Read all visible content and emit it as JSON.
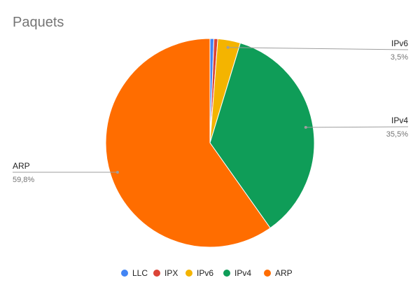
{
  "chart_data": {
    "type": "pie",
    "title": "Paquets",
    "slices": [
      {
        "label": "LLC",
        "value": 0.6,
        "pct_label": "",
        "color": "#4285F4"
      },
      {
        "label": "IPX",
        "value": 0.6,
        "pct_label": "",
        "color": "#DB4437"
      },
      {
        "label": "IPv6",
        "value": 3.5,
        "pct_label": "3,5%",
        "color": "#F4B400"
      },
      {
        "label": "IPv4",
        "value": 35.5,
        "pct_label": "35,5%",
        "color": "#0F9D58"
      },
      {
        "label": "ARP",
        "value": 59.8,
        "pct_label": "59,8%",
        "color": "#FF6D00"
      }
    ],
    "legend_position": "bottom"
  }
}
